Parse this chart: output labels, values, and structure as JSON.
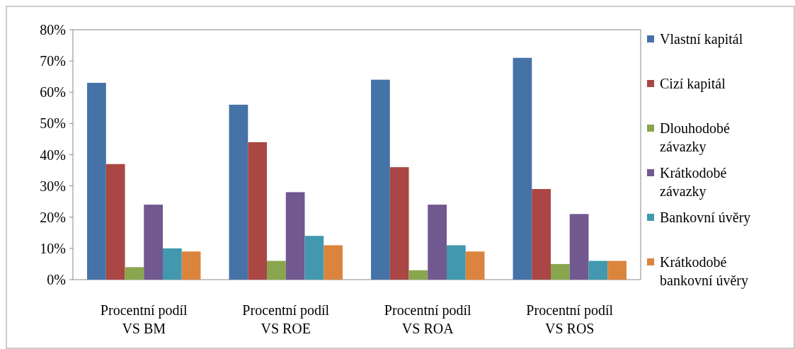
{
  "chart_data": {
    "type": "bar",
    "categories": [
      "Procentní podíl VS BM",
      "Procentní podíl VS ROE",
      "Procentní podíl VS ROA",
      "Procentní podíl VS ROS"
    ],
    "series": [
      {
        "name": "Vlastní kapitál",
        "color": "#4572a7",
        "values": [
          63,
          56,
          64,
          71
        ]
      },
      {
        "name": "Cizí kapitál",
        "color": "#aa4643",
        "values": [
          37,
          44,
          36,
          29
        ]
      },
      {
        "name": "Dlouhodobé závazky",
        "color": "#89a54e",
        "values": [
          4,
          6,
          3,
          5
        ]
      },
      {
        "name": "Krátkodobé závazky",
        "color": "#71588f",
        "values": [
          24,
          28,
          24,
          21
        ]
      },
      {
        "name": "Bankovní úvěry",
        "color": "#4198af",
        "values": [
          10,
          14,
          11,
          6
        ]
      },
      {
        "name": "Krátkodobé bankovní úvěry",
        "color": "#db843d",
        "values": [
          9,
          11,
          9,
          6
        ]
      }
    ],
    "ylim": [
      0,
      80
    ],
    "yticks": [
      {
        "value": 0,
        "label": "0%"
      },
      {
        "value": 10,
        "label": "10%"
      },
      {
        "value": 20,
        "label": "20%"
      },
      {
        "value": 30,
        "label": "30%"
      },
      {
        "value": 40,
        "label": "40%"
      },
      {
        "value": 50,
        "label": "50%"
      },
      {
        "value": 60,
        "label": "60%"
      },
      {
        "value": 70,
        "label": "70%"
      },
      {
        "value": 80,
        "label": "80%"
      }
    ],
    "legend": "right"
  }
}
